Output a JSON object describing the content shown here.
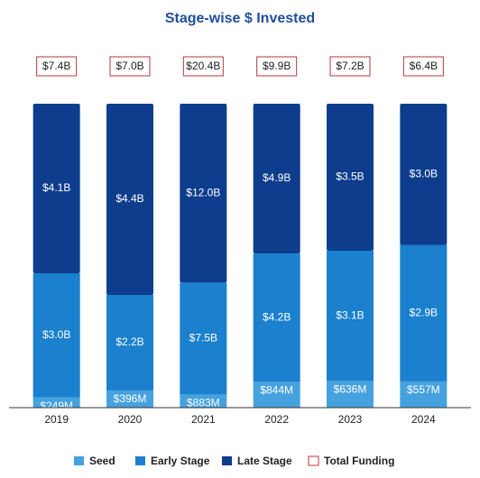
{
  "chart_data": {
    "type": "bar",
    "stacking": "percent",
    "title": "Stage-wise $ Invested",
    "categories": [
      "2019",
      "2020",
      "2021",
      "2022",
      "2023",
      "2024"
    ],
    "series": [
      {
        "name": "Seed",
        "color": "#45a2de",
        "values": [
          0.249,
          0.396,
          0.883,
          0.844,
          0.636,
          0.557
        ],
        "value_labels": [
          "$249M",
          "$396M",
          "$883M",
          "$844M",
          "$636M",
          "$557M"
        ]
      },
      {
        "name": "Early Stage",
        "color": "#1b80cd",
        "values": [
          3.0,
          2.2,
          7.5,
          4.2,
          3.1,
          2.9
        ],
        "value_labels": [
          "$3.0B",
          "$2.2B",
          "$7.5B",
          "$4.2B",
          "$3.1B",
          "$2.9B"
        ]
      },
      {
        "name": "Late Stage",
        "color": "#0d3d8c",
        "values": [
          4.1,
          4.4,
          12.0,
          4.9,
          3.5,
          3.0
        ],
        "value_labels": [
          "$4.1B",
          "$4.4B",
          "$12.0B",
          "$4.9B",
          "$3.5B",
          "$3.0B"
        ]
      }
    ],
    "totals": {
      "name": "Total Funding",
      "color": "#b03a3a",
      "values": [
        7.4,
        7.0,
        20.4,
        9.9,
        7.2,
        6.4
      ],
      "value_labels": [
        "$7.4B",
        "$7.0B",
        "$20.4B",
        "$9.9B",
        "$7.2B",
        "$6.4B"
      ]
    }
  }
}
